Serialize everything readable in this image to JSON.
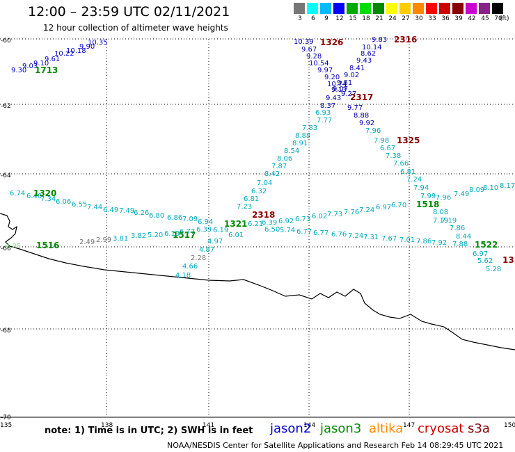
{
  "title": "12:00 – 23:59 UTC 02/11/2021",
  "subtitle": "12 hour collection of altimeter wave heights",
  "footnote": "note:  1) Time is in UTC;  2) SWH is in feet",
  "credit": "NOAA/NESDIS Center for Satellite Applications and Research      Feb 14 08:29:45 UTC 2021",
  "satellites": {
    "jason2": "jason2",
    "jason3": "jason3",
    "altika": "altika",
    "cryosat": "cryosat",
    "s3a": "s3a"
  },
  "legend": {
    "unit": "(ft)",
    "bins": [
      {
        "label": "3",
        "color": "#777777"
      },
      {
        "label": "6",
        "color": "#00ffff"
      },
      {
        "label": "9",
        "color": "#00bbff"
      },
      {
        "label": "12",
        "color": "#0000ff"
      },
      {
        "label": "15",
        "color": "#00aa00"
      },
      {
        "label": "18",
        "color": "#00dd00"
      },
      {
        "label": "21",
        "color": "#008800"
      },
      {
        "label": "24",
        "color": "#ffff00"
      },
      {
        "label": "27",
        "color": "#ffcc00"
      },
      {
        "label": "30",
        "color": "#ff8800"
      },
      {
        "label": "33",
        "color": "#ff0000"
      },
      {
        "label": "36",
        "color": "#cc0000"
      },
      {
        "label": "39",
        "color": "#880000"
      },
      {
        "label": "42",
        "color": "#cc00cc"
      },
      {
        "label": "45",
        "color": "#882288"
      },
      {
        "label": "70",
        "color": "#000000"
      }
    ]
  },
  "axes": {
    "lat_labels": [
      "-60",
      "-62",
      "-64",
      "-66",
      "-68",
      "-70"
    ],
    "lon_labels": [
      "135",
      "138",
      "141",
      "144",
      "147",
      "150"
    ]
  },
  "passes": [
    {
      "time": "1713",
      "color": "#008800",
      "values": [
        "9.30",
        "9.03",
        "9.10",
        "9.61",
        "10.22",
        "10.18",
        "9.90",
        "10.35"
      ]
    },
    {
      "time": "1326",
      "color": "#880000",
      "values": [
        "10.39",
        "9.67",
        "9.28",
        "10.54",
        "9.97",
        "9.20",
        "10.74",
        "9.13",
        "9.43",
        "8.37",
        "6.93",
        "7.77",
        "7.83",
        "8.88",
        "8.91",
        "8.54",
        "8.06",
        "7.87",
        "8.42",
        "7.04",
        "6.32",
        "6.81",
        "7.23",
        "6.01"
      ]
    },
    {
      "time": "2316",
      "color": "#880000",
      "values": [
        "9.83",
        "10.14",
        "8.62",
        "9.43",
        "8.41",
        "9.02",
        "9.81",
        "9.07",
        "9.27",
        "9.77",
        "8.88",
        "9.92",
        "7.96",
        "7.98",
        "6.67",
        "7.38",
        "7.66",
        "6.81",
        "7.24",
        "7.94",
        "7.99",
        "7.19",
        "7.86",
        "8.44",
        "6.97",
        "5.62",
        "5.28"
      ]
    },
    {
      "time": "2317",
      "color": "#880000",
      "values": []
    },
    {
      "time": "1325",
      "color": "#880000",
      "values": []
    },
    {
      "time": "1320",
      "color": "#008800",
      "values": [
        "6.74",
        "6.40",
        "7.34",
        "6.06",
        "6.55",
        "7.44",
        "6.49",
        "7.49",
        "6.26",
        "6.80",
        "6.86",
        "7.09",
        "6.94"
      ]
    },
    {
      "time": "1321",
      "color": "#008800",
      "values": [
        "6.21",
        "6.39",
        "6.92",
        "6.73",
        "6.02",
        "7.73",
        "7.76",
        "7.24",
        "6.97",
        "6.70"
      ]
    },
    {
      "time": "2318",
      "color": "#880000",
      "values": [
        "6.50",
        "5.74",
        "6.77",
        "6.77",
        "6.76",
        "7.24",
        "7.31",
        "7.67",
        "7.01",
        "7.86",
        "7.92",
        "7.88"
      ]
    },
    {
      "time": "1518",
      "color": "#008800",
      "values": [
        "7.96",
        "7.49",
        "8.09",
        "8.10",
        "8.17",
        "8.08",
        "7.19"
      ]
    },
    {
      "time": "1517",
      "color": "#008800",
      "values": [
        "2.49",
        "2.99",
        "3.81",
        "3.82",
        "5.20",
        "6.13",
        "6.77",
        "6.39",
        "6.19",
        "4.97",
        "4.87",
        "2.28",
        "4.66",
        "4.18"
      ]
    },
    {
      "time": "1516",
      "color": "#008800",
      "values": [
        "4.05"
      ]
    },
    {
      "time": "1522",
      "color": "#008800",
      "values": []
    },
    {
      "time": "13",
      "color": "#880000",
      "values": []
    }
  ]
}
